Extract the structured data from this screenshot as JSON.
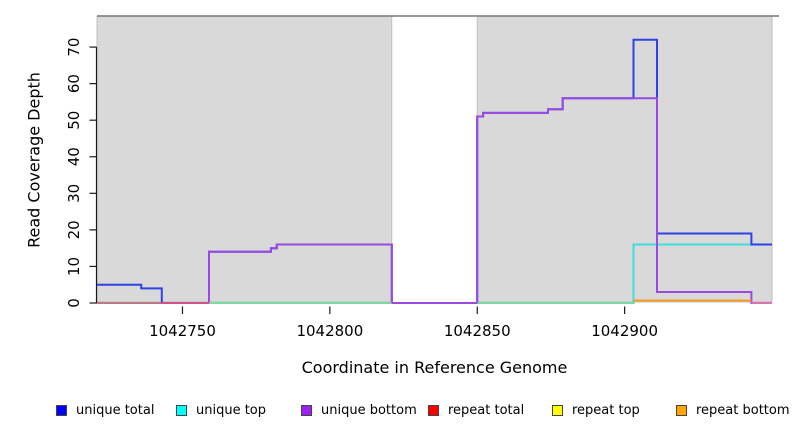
{
  "chart_data": {
    "type": "step-line",
    "title": "",
    "xlabel": "Coordinate in Reference Genome",
    "ylabel": "Read Coverage Depth",
    "xlim": [
      1042721,
      1042950
    ],
    "ylim": [
      0,
      78.5
    ],
    "x_ticks": [
      1042750,
      1042800,
      1042850,
      1042900
    ],
    "y_ticks": [
      0,
      10,
      20,
      30,
      40,
      50,
      60,
      70
    ],
    "grid": false,
    "background": {
      "shaded_fill": "#d9d9d9",
      "shaded_stroke": "#bfbfbf",
      "top_border_color": "#8a8a8a",
      "shaded_regions": [
        {
          "x0": 1042721,
          "x1": 1042821
        },
        {
          "x0": 1042850,
          "x1": 1042950
        }
      ],
      "white_gap": {
        "x0": 1042821,
        "x1": 1042850
      }
    },
    "series": [
      {
        "name": "unique top",
        "color": "#3fdede",
        "width": 2,
        "points": [
          [
            1042721,
            0
          ],
          [
            1042903,
            16
          ]
        ]
      },
      {
        "name": "unique total",
        "color": "#2d43e6",
        "width": 2,
        "points": [
          [
            1042721,
            5
          ],
          [
            1042736,
            4
          ],
          [
            1042743,
            0
          ],
          [
            1042759,
            14
          ],
          [
            1042780,
            15
          ],
          [
            1042782,
            16
          ],
          [
            1042821,
            0
          ],
          [
            1042850,
            51
          ],
          [
            1042852,
            52
          ],
          [
            1042874,
            53
          ],
          [
            1042879,
            56
          ],
          [
            1042903,
            72
          ],
          [
            1042911,
            19
          ],
          [
            1042943,
            16
          ]
        ]
      },
      {
        "name": "unique bottom",
        "color": "#9a4ae0",
        "width": 2,
        "points": [
          [
            1042743,
            0
          ],
          [
            1042759,
            14
          ],
          [
            1042780,
            15
          ],
          [
            1042782,
            16
          ],
          [
            1042821,
            0
          ],
          [
            1042850,
            51
          ],
          [
            1042852,
            52
          ],
          [
            1042874,
            53
          ],
          [
            1042879,
            56
          ],
          [
            1042911,
            3
          ],
          [
            1042943,
            0
          ]
        ]
      }
    ],
    "baseline_segments": [
      {
        "name": "repeat-total-baseline-left",
        "color": "#e8556a",
        "x0": 1042721,
        "x1": 1042759,
        "value": 0,
        "width": 1.6
      },
      {
        "name": "baseline-green-left",
        "color": "#8fd98f",
        "x0": 1042759,
        "x1": 1042821,
        "value": 0,
        "width": 1.6
      },
      {
        "name": "baseline-green-right",
        "color": "#8fd98f",
        "x0": 1042850,
        "x1": 1042903,
        "value": 0,
        "width": 1.6
      },
      {
        "name": "repeat-bottom-baseline",
        "color": "#ff9a1e",
        "x0": 1042903,
        "x1": 1042943,
        "value": 0.7,
        "width": 2
      },
      {
        "name": "baseline-pink-right",
        "color": "#ef7fa2",
        "x0": 1042943,
        "x1": 1042950,
        "value": 0,
        "width": 1.6
      }
    ],
    "legend": {
      "position": "bottom",
      "items": [
        {
          "label": "unique total",
          "color": "#0000ff"
        },
        {
          "label": "unique top",
          "color": "#00ffff"
        },
        {
          "label": "unique bottom",
          "color": "#a020f0"
        },
        {
          "label": "repeat total",
          "color": "#ff0000"
        },
        {
          "label": "repeat top",
          "color": "#ffff00"
        },
        {
          "label": "repeat bottom",
          "color": "#ffa500"
        }
      ]
    }
  }
}
